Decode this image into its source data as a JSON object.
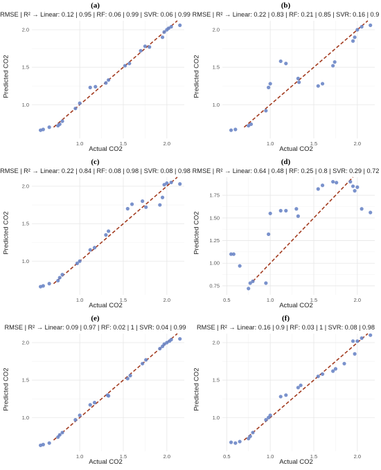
{
  "chart_data": [
    {
      "panel_label": "(a)",
      "type": "scatter",
      "title": "RMSE | R² → Linear: 0.12 | 0.95 | RF: 0.06 | 0.99 | SVR: 0.06 | 0.99",
      "xlabel": "Actual CO2",
      "ylabel": "Predicted CO2",
      "xlim": [
        0.45,
        2.2
      ],
      "ylim": [
        0.55,
        2.12
      ],
      "xticks": [
        1.0,
        1.5,
        2.0
      ],
      "xtick_labels": [
        "1.0",
        "1.5",
        "2.0"
      ],
      "yticks": [
        1.0,
        1.5,
        2.0
      ],
      "ytick_labels": [
        "1.0",
        "1.5",
        "2.0"
      ],
      "grid": true,
      "reference_line": "y = x",
      "colors": {
        "points": "#6b86c6",
        "reference_line": "#a23a1e"
      },
      "x": [
        0.55,
        0.58,
        0.65,
        0.75,
        0.77,
        0.8,
        0.95,
        1.0,
        1.12,
        1.18,
        1.3,
        1.33,
        1.52,
        1.57,
        1.7,
        1.75,
        1.8,
        1.95,
        1.97,
        2.0,
        2.02,
        2.05,
        2.15
      ],
      "y": [
        0.66,
        0.67,
        0.7,
        0.72,
        0.74,
        0.78,
        0.95,
        1.02,
        1.23,
        1.24,
        1.29,
        1.33,
        1.52,
        1.55,
        1.72,
        1.78,
        1.77,
        1.9,
        1.97,
        2.0,
        2.02,
        2.04,
        2.06
      ]
    },
    {
      "panel_label": "(b)",
      "type": "scatter",
      "title": "RMSE | R² → Linear: 0.22 | 0.83 | RF: 0.21 | 0.85 | SVR: 0.16 | 0.9",
      "xlabel": "Actual CO2",
      "ylabel": "Predicted CO2",
      "xlim": [
        0.45,
        2.2
      ],
      "ylim": [
        0.55,
        2.12
      ],
      "xticks": [
        1.0,
        1.5,
        2.0
      ],
      "xtick_labels": [
        "1.0",
        "1.5",
        "2.0"
      ],
      "yticks": [
        1.0,
        1.5,
        2.0
      ],
      "ytick_labels": [
        "1.0",
        "1.5",
        "2.0"
      ],
      "grid": true,
      "reference_line": "y = x",
      "colors": {
        "points": "#6b86c6",
        "reference_line": "#a23a1e"
      },
      "x": [
        0.55,
        0.6,
        0.75,
        0.78,
        0.95,
        0.98,
        1.0,
        1.12,
        1.18,
        1.32,
        1.33,
        1.55,
        1.6,
        1.72,
        1.74,
        1.95,
        1.97,
        2.0,
        2.05,
        2.15
      ],
      "y": [
        0.66,
        0.67,
        0.72,
        0.74,
        0.92,
        1.23,
        1.28,
        1.58,
        1.55,
        1.35,
        1.3,
        1.25,
        1.28,
        1.52,
        1.57,
        1.85,
        1.9,
        2.0,
        2.04,
        2.06
      ]
    },
    {
      "panel_label": "(c)",
      "type": "scatter",
      "title": "RMSE | R² → Linear: 0.22 | 0.84 | RF: 0.08 | 0.98 | SVR: 0.08 | 0.98",
      "xlabel": "Actual CO2",
      "ylabel": "Predicted CO2",
      "xlim": [
        0.45,
        2.2
      ],
      "ylim": [
        0.55,
        2.12
      ],
      "xticks": [
        1.0,
        1.5,
        2.0
      ],
      "xtick_labels": [
        "1.0",
        "1.5",
        "2.0"
      ],
      "yticks": [
        1.0,
        1.5,
        2.0
      ],
      "ytick_labels": [
        "1.0",
        "1.5",
        "2.0"
      ],
      "grid": true,
      "reference_line": "y = x",
      "colors": {
        "points": "#6b86c6",
        "reference_line": "#a23a1e"
      },
      "x": [
        0.55,
        0.58,
        0.65,
        0.75,
        0.77,
        0.8,
        0.97,
        1.0,
        1.12,
        1.17,
        1.3,
        1.33,
        1.55,
        1.6,
        1.72,
        1.76,
        1.92,
        1.95,
        1.97,
        2.0,
        2.05,
        2.15
      ],
      "y": [
        0.66,
        0.67,
        0.7,
        0.74,
        0.78,
        0.82,
        0.97,
        1.0,
        1.15,
        1.18,
        1.35,
        1.4,
        1.7,
        1.76,
        1.8,
        1.72,
        1.75,
        1.85,
        2.02,
        2.04,
        2.05,
        2.03
      ]
    },
    {
      "panel_label": "(d)",
      "type": "scatter",
      "title": "RMSE | R² → Linear: 0.64 | 0.48 | RF: 0.25 | 0.8 | SVR: 0.29 | 0.72",
      "xlabel": "Actual CO2",
      "ylabel": "Predicted CO2",
      "xlim": [
        0.45,
        2.2
      ],
      "ylim": [
        0.65,
        1.95
      ],
      "xticks": [
        0.5,
        1.0,
        1.5,
        2.0
      ],
      "xtick_labels": [
        "0.5",
        "1.0",
        "1.5",
        "2.0"
      ],
      "yticks": [
        0.75,
        1.0,
        1.25,
        1.5,
        1.75
      ],
      "ytick_labels": [
        "0.75",
        "1.00",
        "1.25",
        "1.50",
        "1.75"
      ],
      "grid": true,
      "reference_line": "y = x",
      "colors": {
        "points": "#6b86c6",
        "reference_line": "#a23a1e"
      },
      "x": [
        0.55,
        0.58,
        0.65,
        0.75,
        0.77,
        0.8,
        0.95,
        0.98,
        1.0,
        1.12,
        1.18,
        1.3,
        1.32,
        1.55,
        1.6,
        1.72,
        1.76,
        1.92,
        1.95,
        1.97,
        2.0,
        2.05,
        2.15
      ],
      "y": [
        1.1,
        1.1,
        0.97,
        0.72,
        0.78,
        0.8,
        0.78,
        1.32,
        1.55,
        1.58,
        1.58,
        1.6,
        1.52,
        1.82,
        1.86,
        1.9,
        1.89,
        1.9,
        1.85,
        1.8,
        1.84,
        1.6,
        1.56
      ]
    },
    {
      "panel_label": "(e)",
      "type": "scatter",
      "title": "RMSE | R² → Linear: 0.09 | 0.97 | RF: 0.02 | 1 | SVR: 0.04 | 0.99",
      "xlabel": "Actual CO2",
      "ylabel": "Predicted CO2",
      "xlim": [
        0.45,
        2.2
      ],
      "ylim": [
        0.55,
        2.12
      ],
      "xticks": [
        1.0,
        1.5,
        2.0
      ],
      "xtick_labels": [
        "1.0",
        "1.5",
        "2.0"
      ],
      "yticks": [
        1.0,
        1.5,
        2.0
      ],
      "ytick_labels": [
        "1.0",
        "1.5",
        "2.0"
      ],
      "grid": true,
      "reference_line": "y = x",
      "colors": {
        "points": "#6b86c6",
        "reference_line": "#a23a1e"
      },
      "x": [
        0.55,
        0.58,
        0.65,
        0.75,
        0.77,
        0.8,
        0.95,
        1.0,
        1.12,
        1.17,
        1.32,
        1.33,
        1.55,
        1.58,
        1.72,
        1.76,
        1.92,
        1.95,
        1.97,
        2.0,
        2.03,
        2.05,
        2.15
      ],
      "y": [
        0.63,
        0.64,
        0.66,
        0.74,
        0.77,
        0.8,
        0.97,
        1.03,
        1.17,
        1.2,
        1.3,
        1.29,
        1.52,
        1.56,
        1.72,
        1.77,
        1.92,
        1.95,
        1.98,
        2.0,
        2.02,
        2.04,
        2.05
      ]
    },
    {
      "panel_label": "(f)",
      "type": "scatter",
      "title": "RMSE | R² → Linear: 0.16 | 0.9 | RF: 0.03 | 1 | SVR: 0.08 | 0.98",
      "xlabel": "Actual CO2",
      "ylabel": "Predicted CO2",
      "xlim": [
        0.45,
        2.2
      ],
      "ylim": [
        0.55,
        2.12
      ],
      "xticks": [
        0.5,
        1.0,
        1.5,
        2.0
      ],
      "xtick_labels": [
        "0.5",
        "1.0",
        "1.5",
        "2.0"
      ],
      "yticks": [
        1.0,
        1.5,
        2.0
      ],
      "ytick_labels": [
        "1.0",
        "1.5",
        "2.0"
      ],
      "grid": true,
      "reference_line": "y = x",
      "colors": {
        "points": "#6b86c6",
        "reference_line": "#a23a1e"
      },
      "x": [
        0.55,
        0.6,
        0.65,
        0.75,
        0.77,
        0.8,
        0.95,
        0.98,
        1.0,
        1.12,
        1.18,
        1.32,
        1.35,
        1.55,
        1.6,
        1.72,
        1.75,
        1.85,
        1.95,
        1.97,
        2.0,
        2.05,
        2.15
      ],
      "y": [
        0.67,
        0.66,
        0.68,
        0.72,
        0.75,
        0.8,
        0.97,
        1.0,
        1.03,
        1.28,
        1.3,
        1.4,
        1.43,
        1.55,
        1.58,
        1.62,
        1.65,
        1.72,
        2.02,
        1.85,
        2.02,
        2.06,
        2.1
      ]
    }
  ]
}
